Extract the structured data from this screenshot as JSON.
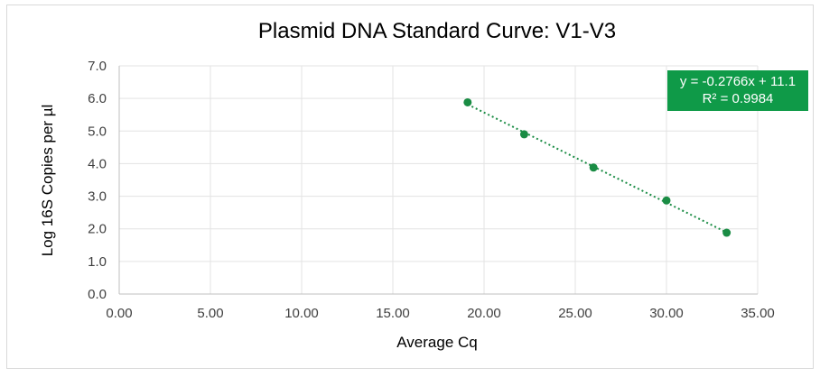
{
  "chart_data": {
    "type": "scatter",
    "title": "Plasmid DNA Standard Curve: V1-V3",
    "xlabel": "Average Cq",
    "ylabel": "Log 16S Copies per µl",
    "xlim": [
      0,
      35
    ],
    "ylim": [
      0,
      7
    ],
    "x_ticks": [
      "0.00",
      "5.00",
      "10.00",
      "15.00",
      "20.00",
      "25.00",
      "30.00",
      "35.00"
    ],
    "y_ticks": [
      "0.0",
      "1.0",
      "2.0",
      "3.0",
      "4.0",
      "5.0",
      "6.0",
      "7.0"
    ],
    "grid": true,
    "legend": "none",
    "series": [
      {
        "x": [
          19.1,
          22.2,
          26.0,
          30.0,
          33.3
        ],
        "y": [
          5.88,
          4.9,
          3.88,
          2.87,
          1.88
        ],
        "color": "#1a8c44"
      }
    ],
    "trendline": {
      "type": "linear",
      "slope": -0.2766,
      "intercept": 11.1,
      "style": "dotted",
      "color": "#1a8c44",
      "equation_label": "y = -0.2766x + 11.1",
      "r2_label": "R² = 0.9984",
      "label_bg": "#0f9a48",
      "label_position": "top-right"
    }
  }
}
